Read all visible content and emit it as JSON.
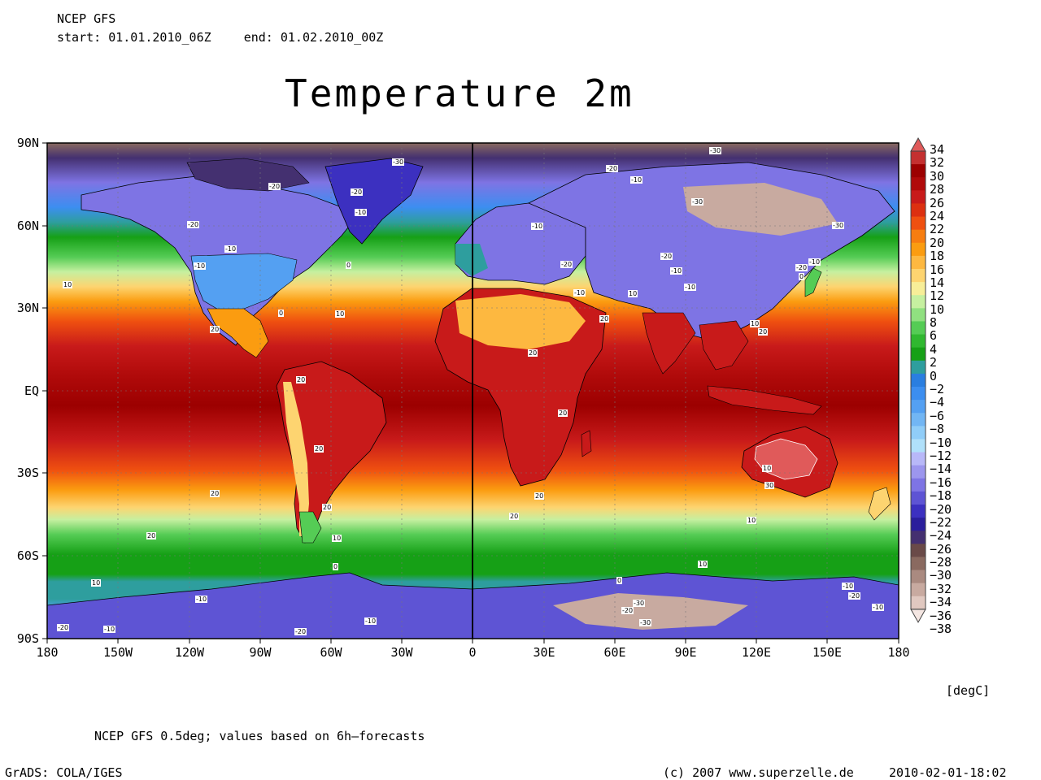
{
  "header": {
    "model": "NCEP GFS",
    "start_label": "start:",
    "start_value": "01.01.2010_06Z",
    "end_label": "end:",
    "end_value": "01.02.2010_00Z"
  },
  "title": "Temperature 2m",
  "lat_labels": [
    "90N",
    "60N",
    "30N",
    "EQ",
    "30S",
    "60S",
    "90S"
  ],
  "lon_labels": [
    "180",
    "150W",
    "120W",
    "90W",
    "60W",
    "30W",
    "0",
    "30E",
    "60E",
    "90E",
    "120E",
    "150E",
    "180"
  ],
  "colorbar": {
    "labels": [
      "34",
      "32",
      "30",
      "28",
      "26",
      "24",
      "22",
      "20",
      "18",
      "16",
      "14",
      "12",
      "10",
      "8",
      "6",
      "4",
      "2",
      "0",
      "−2",
      "−4",
      "−6",
      "−8",
      "−10",
      "−12",
      "−14",
      "−16",
      "−18",
      "−20",
      "−22",
      "−24",
      "−26",
      "−28",
      "−30",
      "−32",
      "−34",
      "−36",
      "−38"
    ],
    "colors": [
      "#e05a5a",
      "#c43030",
      "#9c0000",
      "#b00a0a",
      "#c81a1a",
      "#dc3010",
      "#ef5010",
      "#f77d10",
      "#fb9c10",
      "#fdb840",
      "#fdd470",
      "#f7ee98",
      "#c6f0a0",
      "#90e080",
      "#55cc55",
      "#30b830",
      "#16a016",
      "#2e9e9e",
      "#2a7ee0",
      "#3c8ef0",
      "#54a0f2",
      "#72b6f4",
      "#90cdf8",
      "#b0e0fa",
      "#b8b8f8",
      "#9c96ee",
      "#7e74e4",
      "#5e54d4",
      "#3c30c0",
      "#2a1e9c",
      "#443070",
      "#6a4a48",
      "#8a6a60",
      "#aa8a80",
      "#c8aaa0",
      "#e0c8c0",
      "#f4e6e2"
    ]
  },
  "unit": "[degC]",
  "contour_labels": [
    "-30",
    "-30",
    "-20",
    "-30",
    "-20",
    "-20",
    "-10",
    "-10",
    "-10",
    "-20",
    "-10",
    "-30",
    "-20",
    "0",
    "-20",
    "-10",
    "-10",
    "-10",
    "0",
    "-20",
    "-10",
    "-10",
    "10",
    "0",
    "10",
    "10",
    "20",
    "20",
    "10",
    "20",
    "20",
    "20",
    "20",
    "20",
    "20",
    "20",
    "10",
    "30",
    "20",
    "20",
    "20",
    "10",
    "10",
    "10",
    "10",
    "0",
    "0",
    "-10",
    "-10",
    "-20",
    "-30",
    "-30",
    "-20",
    "-10",
    "-20",
    "-10",
    "-20",
    "-10"
  ],
  "footer": {
    "source_note": "NCEP GFS 0.5deg; values based on 6h—forecasts",
    "grads_credit": "GrADS: COLA/IGES",
    "copyright": "(c) 2007 www.superzelle.de",
    "timestamp": "2010-02-01-18:02"
  }
}
